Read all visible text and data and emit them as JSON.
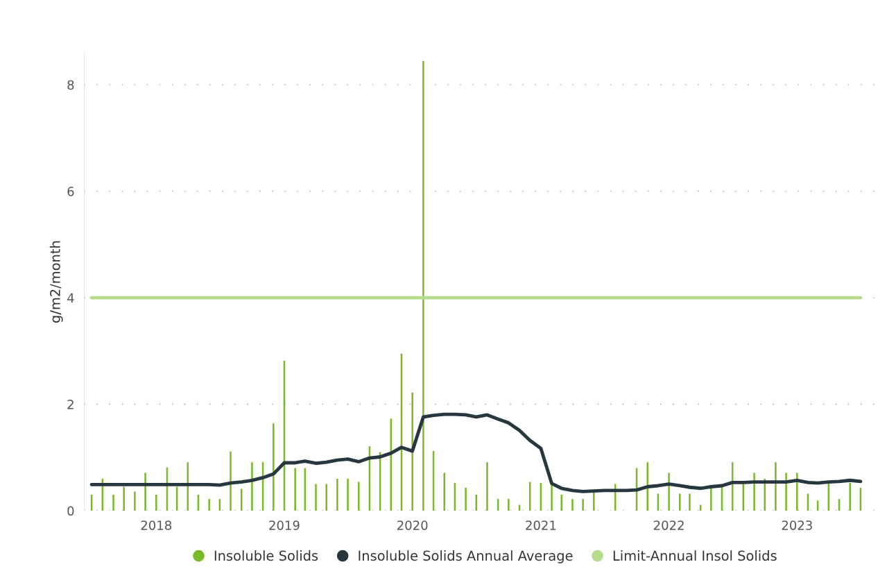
{
  "chart_data": {
    "type": "bar",
    "ylabel": "g/m2/month",
    "x": [
      "2017-07",
      "2017-08",
      "2017-09",
      "2017-10",
      "2017-11",
      "2017-12",
      "2018-01",
      "2018-02",
      "2018-03",
      "2018-04",
      "2018-05",
      "2018-06",
      "2018-07",
      "2018-08",
      "2018-09",
      "2018-10",
      "2018-11",
      "2018-12",
      "2019-01",
      "2019-02",
      "2019-03",
      "2019-04",
      "2019-05",
      "2019-06",
      "2019-07",
      "2019-08",
      "2019-09",
      "2019-10",
      "2019-11",
      "2019-12",
      "2020-01",
      "2020-02",
      "2020-03",
      "2020-04",
      "2020-05",
      "2020-06",
      "2020-07",
      "2020-08",
      "2020-09",
      "2020-10",
      "2020-11",
      "2020-12",
      "2021-01",
      "2021-02",
      "2021-03",
      "2021-04",
      "2021-05",
      "2021-06",
      "2021-07",
      "2021-08",
      "2021-09",
      "2021-10",
      "2021-11",
      "2021-12",
      "2022-01",
      "2022-02",
      "2022-03",
      "2022-04",
      "2022-05",
      "2022-06",
      "2022-07",
      "2022-08",
      "2022-09",
      "2022-10",
      "2022-11",
      "2022-12",
      "2023-01",
      "2023-02",
      "2023-03",
      "2023-04",
      "2023-05",
      "2023-06",
      "2023-07"
    ],
    "series": [
      {
        "name": "Insoluble Solids",
        "color": "#7ab929",
        "values": [
          0.3,
          0.6,
          0.3,
          0.45,
          0.36,
          0.71,
          0.3,
          0.81,
          0.45,
          0.91,
          0.3,
          0.22,
          0.22,
          1.11,
          0.41,
          0.91,
          0.91,
          1.64,
          2.82,
          0.8,
          0.8,
          0.5,
          0.5,
          0.6,
          0.6,
          0.54,
          1.21,
          1.1,
          1.73,
          2.95,
          2.22,
          8.45,
          1.12,
          0.71,
          0.52,
          0.43,
          0.3,
          0.91,
          0.22,
          0.22,
          0.11,
          0.54,
          0.52,
          0.5,
          0.3,
          0.22,
          0.22,
          0.35,
          null,
          0.5,
          null,
          0.8,
          0.91,
          0.32,
          0.71,
          0.32,
          0.32,
          0.11,
          0.47,
          0.47,
          0.91,
          0.52,
          0.71,
          0.6,
          0.91,
          0.71,
          0.71,
          0.32,
          0.19,
          0.52,
          0.22,
          0.52,
          0.43
        ]
      },
      {
        "name": "Insoluble Solids Annual Average",
        "type": "line",
        "color": "#263740",
        "values": [
          0.49,
          0.49,
          0.49,
          0.49,
          0.49,
          0.49,
          0.49,
          0.49,
          0.49,
          0.49,
          0.49,
          0.49,
          0.48,
          0.52,
          0.54,
          0.57,
          0.62,
          0.69,
          0.9,
          0.9,
          0.93,
          0.89,
          0.91,
          0.95,
          0.97,
          0.92,
          0.99,
          1.01,
          1.08,
          1.19,
          1.12,
          1.76,
          1.79,
          1.81,
          1.81,
          1.8,
          1.76,
          1.8,
          1.72,
          1.65,
          1.51,
          1.32,
          1.17,
          0.51,
          0.42,
          0.38,
          0.36,
          0.37,
          0.38,
          0.38,
          0.38,
          0.39,
          0.45,
          0.47,
          0.5,
          0.47,
          0.44,
          0.42,
          0.45,
          0.47,
          0.53,
          0.53,
          0.54,
          0.54,
          0.54,
          0.54,
          0.57,
          0.53,
          0.52,
          0.54,
          0.55,
          0.57,
          0.55
        ]
      },
      {
        "name": "Limit-Annual Insol Solids",
        "type": "line",
        "color": "#b5dc8a",
        "values": [
          4,
          4,
          4,
          4,
          4,
          4,
          4,
          4,
          4,
          4,
          4,
          4,
          4,
          4,
          4,
          4,
          4,
          4,
          4,
          4,
          4,
          4,
          4,
          4,
          4,
          4,
          4,
          4,
          4,
          4,
          4,
          4,
          4,
          4,
          4,
          4,
          4,
          4,
          4,
          4,
          4,
          4,
          4,
          4,
          4,
          4,
          4,
          4,
          4,
          4,
          4,
          4,
          4,
          4,
          4,
          4,
          4,
          4,
          4,
          4,
          4,
          4,
          4,
          4,
          4,
          4,
          4,
          4,
          4,
          4,
          4,
          4,
          4
        ]
      }
    ],
    "xlim": [
      "2017-06-10",
      "2023-08-20"
    ],
    "xticks": [
      "2018",
      "2019",
      "2020",
      "2021",
      "2022",
      "2023"
    ],
    "ylim": [
      0,
      8.6
    ],
    "yticks": [
      0,
      2,
      4,
      6,
      8
    ],
    "grid": "y",
    "legend": "bottom",
    "marker": "none",
    "line_style": "solid"
  }
}
